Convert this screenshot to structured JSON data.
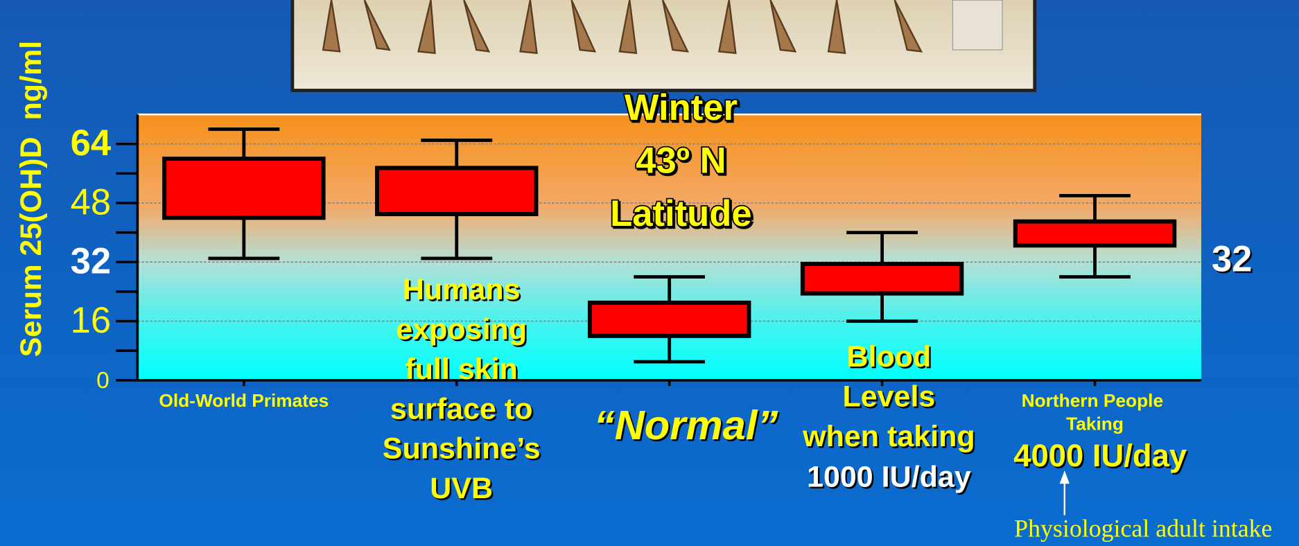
{
  "chart_data": {
    "type": "box",
    "y_label": "Serum 25(OH)D  ng/ml",
    "categories": [
      "Old-World Primates",
      null,
      null,
      null,
      "Northern People Taking"
    ],
    "low": [
      33,
      33,
      5,
      16,
      28
    ],
    "q1": [
      44,
      45,
      12,
      23.5,
      36.5
    ],
    "q3": [
      60,
      57.5,
      21,
      31.5,
      43
    ],
    "high": [
      68,
      65,
      28,
      40,
      50
    ],
    "color": "#ff0000",
    "ylim": [
      0,
      72
    ],
    "yticks": [
      0,
      16,
      32,
      48,
      64
    ],
    "minor_yticks": [
      8,
      24,
      40,
      56
    ],
    "grid": true,
    "annotations": [
      {
        "lines": [
          "Winter",
          "43º N",
          "Latitude"
        ],
        "color": "#ffff00"
      },
      {
        "lines": [
          "Humans",
          "exposing",
          "full skin",
          "surface to",
          "Sunshine’s",
          "UVB"
        ],
        "color": "#ffff00"
      },
      {
        "lines": [
          "“Normal”"
        ],
        "color": "#ffff00"
      },
      {
        "lines": [
          "Blood",
          "Levels",
          "when taking"
        ],
        "color": "#ffff00"
      },
      {
        "lines": [
          "1000 IU/day"
        ],
        "color": "#ffffff"
      },
      {
        "lines": [
          "4000 IU/day"
        ],
        "color": "#ffff00"
      },
      {
        "lines": [
          "32"
        ],
        "color": "#ffffff"
      },
      {
        "lines": [
          "Physiological adult intake"
        ],
        "color": "#ffff00"
      }
    ]
  }
}
